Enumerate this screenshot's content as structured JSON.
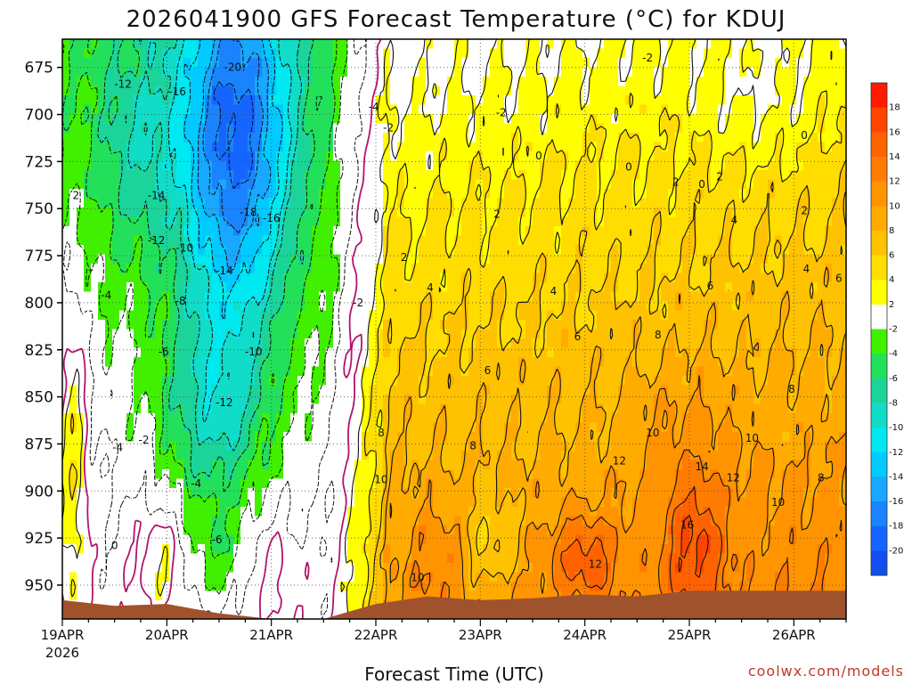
{
  "chart_data": {
    "type": "heatmap",
    "subtype": "time-height filled contour",
    "title": "2026041900 GFS Forecast Temperature (°C) for KDUJ",
    "xlabel": "Forecast Time (UTC)",
    "ylabel": "",
    "credit": "coolwx.com/models",
    "x_tick_labels": [
      "19APR",
      "20APR",
      "21APR",
      "22APR",
      "23APR",
      "24APR",
      "25APR",
      "26APR"
    ],
    "x_year_label": "2026",
    "x_range_days": [
      0,
      7.5
    ],
    "y_tick_labels": [
      "675",
      "700",
      "725",
      "750",
      "775",
      "800",
      "825",
      "850",
      "875",
      "900",
      "925",
      "950"
    ],
    "y_ticks": [
      675,
      700,
      725,
      750,
      775,
      800,
      825,
      850,
      875,
      900,
      925,
      950
    ],
    "y_range_hpa": [
      660,
      968
    ],
    "colorbar_levels": [
      18,
      16,
      14,
      12,
      10,
      8,
      6,
      4,
      2,
      -2,
      -4,
      -6,
      -8,
      -10,
      -12,
      -14,
      -16,
      -18,
      -20
    ],
    "colorbar_labels": [
      "18",
      "16",
      "14",
      "12",
      "10",
      "8",
      "6",
      "4",
      "2",
      "-2",
      "-4",
      "-6",
      "-8",
      "-10",
      "-12",
      "-14",
      "-16",
      "-18",
      "-20"
    ],
    "colors": {
      "t18": "#ff1a00",
      "t16": "#ff4400",
      "t14": "#ff6200",
      "t12": "#ff7c00",
      "t10": "#ff9400",
      "t8": "#ffab00",
      "t6": "#ffc200",
      "t4": "#ffdd00",
      "t2": "#ffff00",
      "t0": "#ffffff",
      "tm2": "#ffffff",
      "tm4": "#40f000",
      "tm6": "#22e05a",
      "tm8": "#1ad49a",
      "tm10": "#10dcc8",
      "tm12": "#00e8f0",
      "tm14": "#00caff",
      "tm16": "#18a8ff",
      "tm18": "#1a84ff",
      "tm20": "#1566ff",
      "tm22": "#1050ee",
      "ground": "#a0522d"
    },
    "contour_labels": [
      {
        "text": "-20",
        "day": 1.63,
        "p": 675
      },
      {
        "text": "-16",
        "day": 1.1,
        "p": 688
      },
      {
        "text": "-12",
        "day": 0.58,
        "p": 684
      },
      {
        "text": "-4",
        "day": 2.98,
        "p": 696
      },
      {
        "text": "-2",
        "day": 3.12,
        "p": 707
      },
      {
        "text": "-2",
        "day": 4.2,
        "p": 699
      },
      {
        "text": "-2",
        "day": 5.6,
        "p": 670
      },
      {
        "text": "0",
        "day": 4.56,
        "p": 722
      },
      {
        "text": "0",
        "day": 5.42,
        "p": 728
      },
      {
        "text": "0",
        "day": 6.12,
        "p": 737
      },
      {
        "text": "0",
        "day": 7.1,
        "p": 711
      },
      {
        "text": "2",
        "day": 0.13,
        "p": 743
      },
      {
        "text": "2",
        "day": 3.27,
        "p": 776
      },
      {
        "text": "2",
        "day": 4.16,
        "p": 753
      },
      {
        "text": "2",
        "day": 5.87,
        "p": 736
      },
      {
        "text": "2",
        "day": 6.29,
        "p": 733
      },
      {
        "text": "2",
        "day": 7.1,
        "p": 751
      },
      {
        "text": "-14",
        "day": 0.9,
        "p": 743
      },
      {
        "text": "-18",
        "day": 1.78,
        "p": 752
      },
      {
        "text": "-16",
        "day": 2.0,
        "p": 755
      },
      {
        "text": "-12",
        "day": 0.9,
        "p": 767
      },
      {
        "text": "-10",
        "day": 1.17,
        "p": 771
      },
      {
        "text": "-14",
        "day": 1.55,
        "p": 783
      },
      {
        "text": "-8",
        "day": 1.13,
        "p": 799
      },
      {
        "text": "-4",
        "day": 0.42,
        "p": 796
      },
      {
        "text": "-6",
        "day": 0.97,
        "p": 826
      },
      {
        "text": "-10",
        "day": 1.83,
        "p": 826
      },
      {
        "text": "-12",
        "day": 1.55,
        "p": 853
      },
      {
        "text": "-4",
        "day": 0.53,
        "p": 877
      },
      {
        "text": "-2",
        "day": 0.78,
        "p": 873
      },
      {
        "text": "-4",
        "day": 1.28,
        "p": 896
      },
      {
        "text": "-6",
        "day": 1.48,
        "p": 926
      },
      {
        "text": "0",
        "day": 0.5,
        "p": 929
      },
      {
        "text": "-2",
        "day": 2.83,
        "p": 800
      },
      {
        "text": "4",
        "day": 3.52,
        "p": 792
      },
      {
        "text": "4",
        "day": 4.7,
        "p": 794
      },
      {
        "text": "4",
        "day": 6.43,
        "p": 756
      },
      {
        "text": "4",
        "day": 7.12,
        "p": 782
      },
      {
        "text": "6",
        "day": 4.07,
        "p": 836
      },
      {
        "text": "6",
        "day": 4.93,
        "p": 818
      },
      {
        "text": "6",
        "day": 6.2,
        "p": 791
      },
      {
        "text": "6",
        "day": 7.43,
        "p": 787
      },
      {
        "text": "8",
        "day": 3.05,
        "p": 869
      },
      {
        "text": "8",
        "day": 3.93,
        "p": 876
      },
      {
        "text": "8",
        "day": 5.7,
        "p": 817
      },
      {
        "text": "8",
        "day": 6.98,
        "p": 846
      },
      {
        "text": "8",
        "day": 7.26,
        "p": 893
      },
      {
        "text": "10",
        "day": 3.05,
        "p": 894
      },
      {
        "text": "10",
        "day": 3.4,
        "p": 946
      },
      {
        "text": "10",
        "day": 5.65,
        "p": 869
      },
      {
        "text": "10",
        "day": 6.6,
        "p": 872
      },
      {
        "text": "10",
        "day": 6.85,
        "p": 906
      },
      {
        "text": "12",
        "day": 5.33,
        "p": 884
      },
      {
        "text": "12",
        "day": 6.42,
        "p": 893
      },
      {
        "text": "12",
        "day": 5.1,
        "p": 939
      },
      {
        "text": "14",
        "day": 6.12,
        "p": 887
      },
      {
        "text": "16",
        "day": 5.98,
        "p": 918
      }
    ]
  }
}
